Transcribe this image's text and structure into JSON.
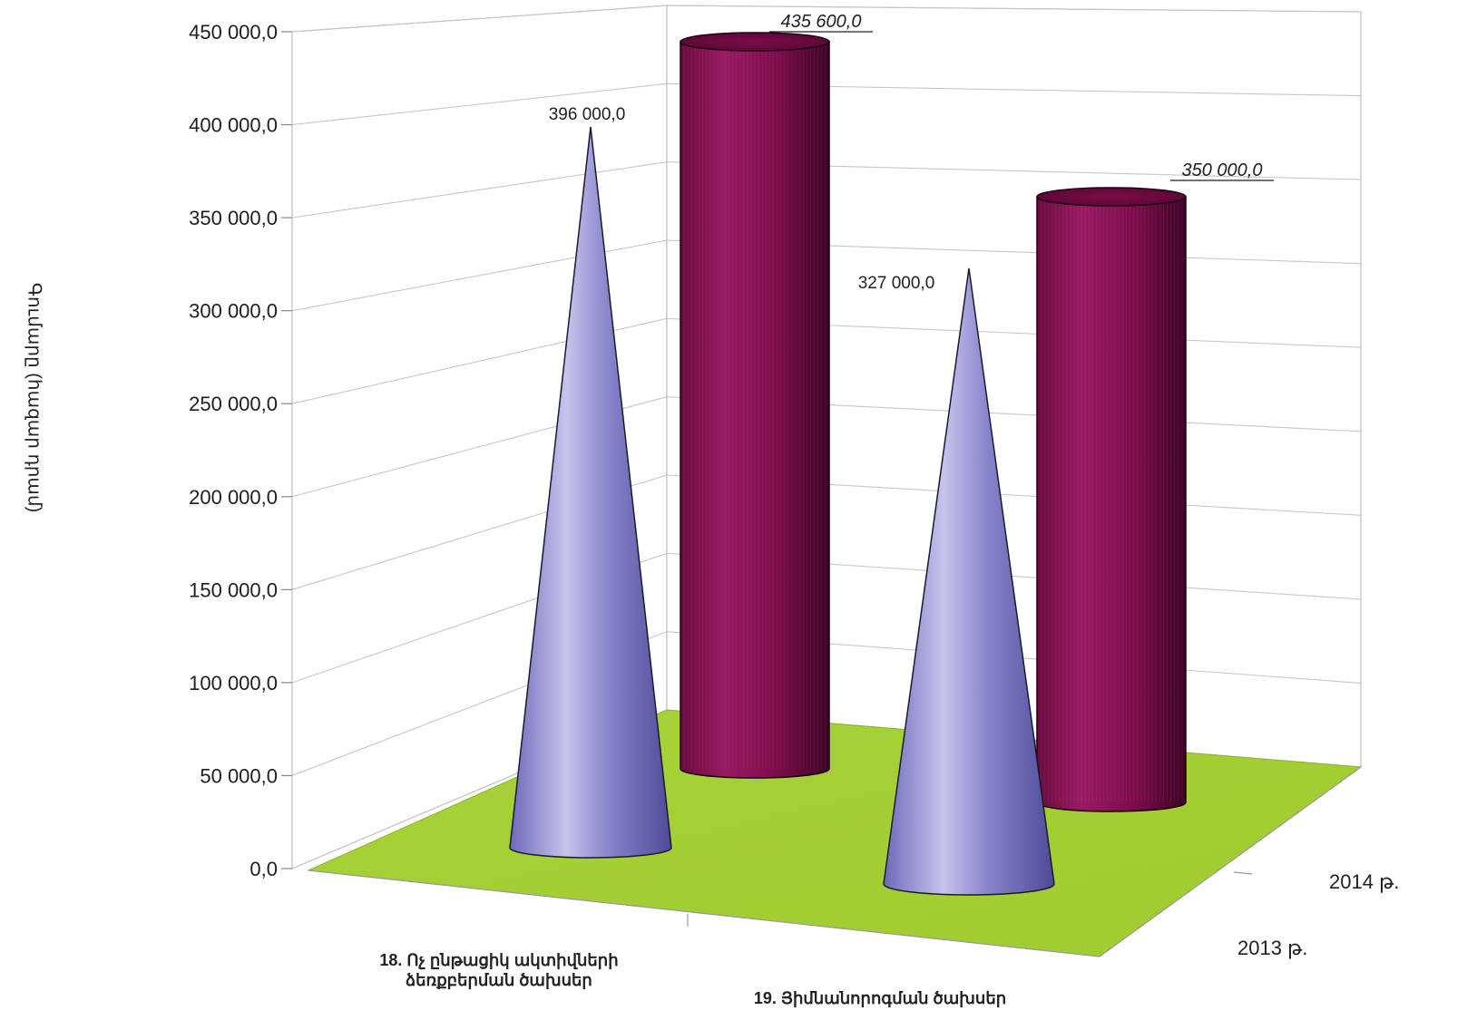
{
  "chart_data": {
    "type": "bar",
    "style": "3d-cones-and-cylinders",
    "ylabel": "Գումարը (հազար դրամ)",
    "ylim": [
      0,
      450000
    ],
    "y_ticks": [
      "0,0",
      "50 000,0",
      "100 000,0",
      "150 000,0",
      "200 000,0",
      "250 000,0",
      "300 000,0",
      "350 000,0",
      "400 000,0",
      "450 000,0"
    ],
    "y_tick_values": [
      0,
      50000,
      100000,
      150000,
      200000,
      250000,
      300000,
      350000,
      400000,
      450000
    ],
    "categories": [
      [
        "18. Ոչ ընթացիկ ակտիվների",
        "ձեռքբերման ծախսեր"
      ],
      [
        "19. Յիմնանորոգման ծախսեր"
      ]
    ],
    "series": [
      {
        "name": "2013 թ.",
        "shape": "cone",
        "color": "#8a86cc",
        "values": [
          396000,
          327000
        ],
        "value_labels": [
          "396 000,0",
          "327 000,0"
        ]
      },
      {
        "name": "2014 թ.",
        "shape": "cylinder",
        "color": "#8a1055",
        "values": [
          435600,
          350000
        ],
        "value_labels": [
          "435 600,0",
          "350 000,0"
        ]
      }
    ],
    "floor_color": "#a9d23a",
    "grid": true
  }
}
